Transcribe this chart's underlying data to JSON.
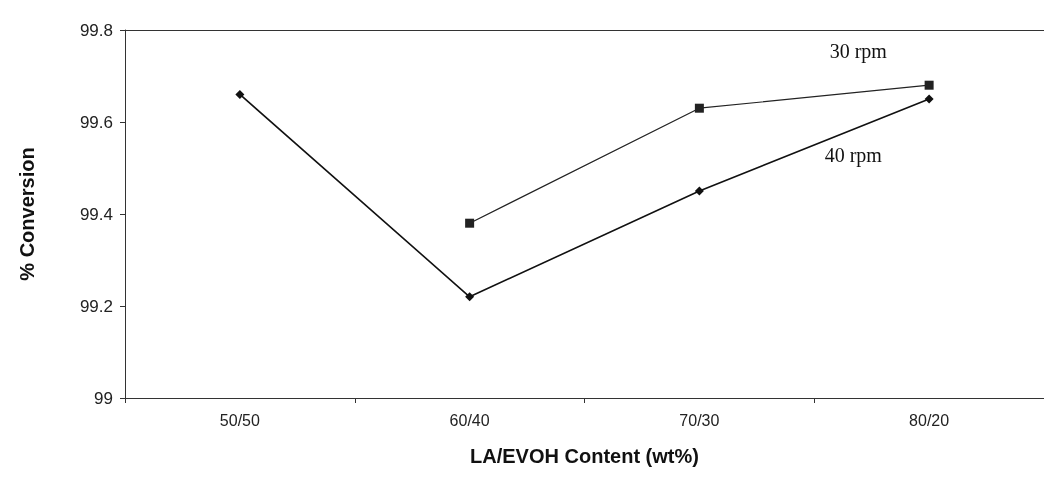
{
  "chart_data": {
    "type": "line",
    "xlabel": "LA/EVOH Content (wt%)",
    "ylabel": "% Conversion",
    "categories": [
      "50/50",
      "60/40",
      "70/30",
      "80/20"
    ],
    "series": [
      {
        "name": "30 rpm",
        "color": "#222222",
        "marker": "square",
        "values": [
          null,
          99.38,
          99.63,
          99.68
        ]
      },
      {
        "name": "40 rpm",
        "color": "#111111",
        "marker": "diamond",
        "values": [
          99.66,
          99.22,
          99.45,
          99.65
        ]
      }
    ],
    "ylim": [
      99,
      99.8
    ],
    "yticks": [
      99,
      99.2,
      99.4,
      99.6,
      99.8
    ],
    "grid": false,
    "legend": false,
    "line_style": "solid"
  }
}
